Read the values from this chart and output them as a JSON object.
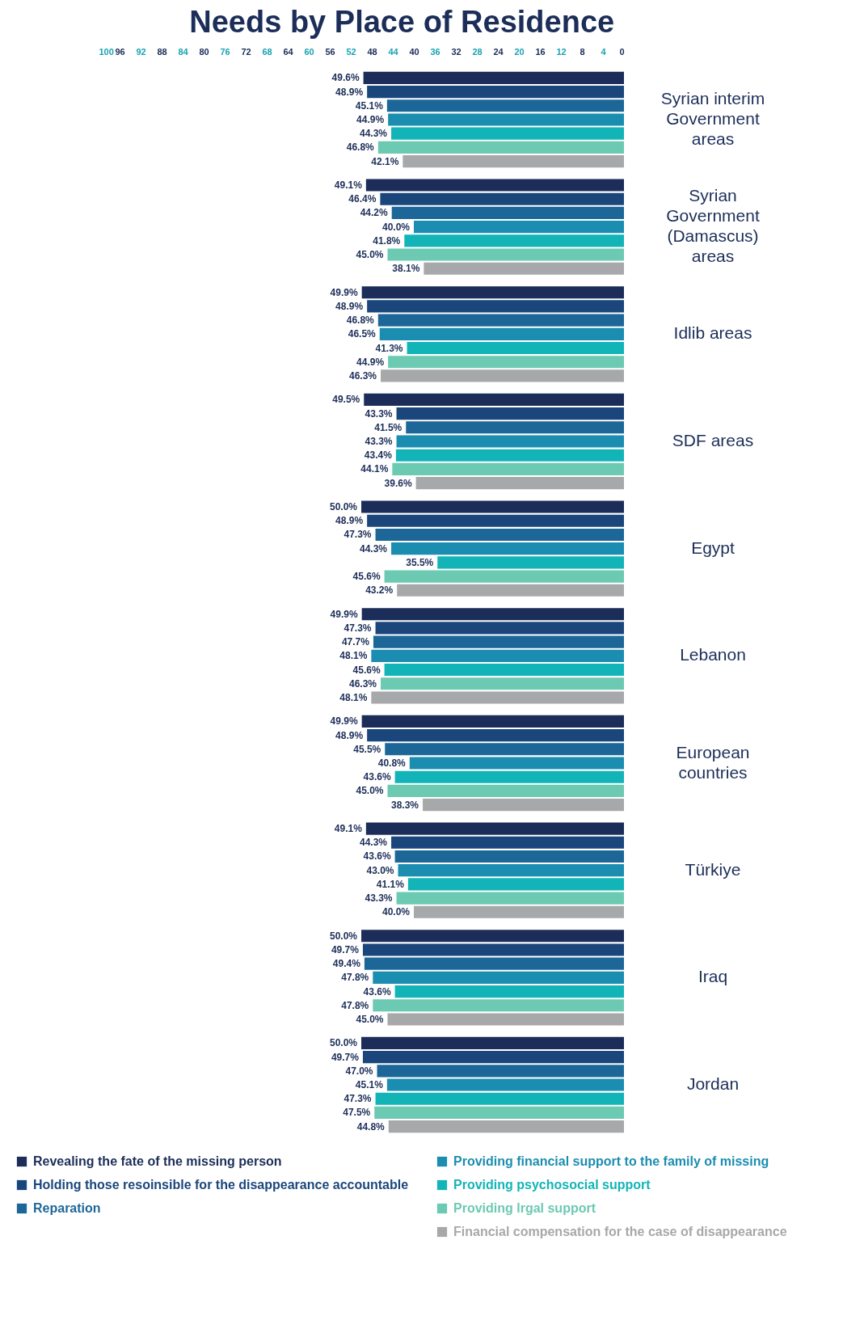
{
  "chart_data": {
    "type": "bar",
    "title": "Needs by Place of Residence",
    "orientation": "horizontal",
    "legend": "bottom",
    "grid": false,
    "categories": [
      "Syrian interim Government areas",
      "Syrian Government (Damascus) areas",
      "Idlib areas",
      "SDF areas",
      "Egypt",
      "Lebanon",
      "European countries",
      "Türkiye",
      "Iraq",
      "Jordan"
    ],
    "xlim": [
      100,
      0
    ],
    "xticks": [
      100,
      96,
      92,
      88,
      84,
      80,
      76,
      72,
      68,
      64,
      60,
      56,
      52,
      48,
      44,
      40,
      36,
      32,
      28,
      24,
      20,
      16,
      12,
      8,
      4,
      0
    ],
    "series": [
      {
        "name": "Revealing the fate of the missing person",
        "color": "#1b2d58",
        "values": [
          49.6,
          49.1,
          49.9,
          49.5,
          50.0,
          49.9,
          49.9,
          49.1,
          50.0,
          50.0
        ],
        "value_labels": [
          "49.6%",
          "49.1%",
          "49.9%",
          "49.5%",
          "50.0%",
          "49.9%",
          "49.9%",
          "49.1%",
          "50.0%",
          "50.0%"
        ]
      },
      {
        "name": "Holding those resoinsible for the disappearance accountable",
        "color": "#1a467c",
        "values": [
          48.9,
          46.4,
          48.9,
          43.3,
          48.9,
          47.3,
          48.9,
          44.3,
          49.7,
          49.7
        ],
        "value_labels": [
          "48.9%",
          "46.4%",
          "48.9%",
          "43.3%",
          "48.9%",
          "47.3%",
          "48.9%",
          "44.3%",
          "49.7%",
          "49.7%"
        ]
      },
      {
        "name": "Reparation",
        "color": "#1c6798",
        "values": [
          45.1,
          44.2,
          46.8,
          41.5,
          47.3,
          47.7,
          45.5,
          43.6,
          49.4,
          47.0
        ],
        "value_labels": [
          "45.1%",
          "44.2%",
          "46.8%",
          "41.5%",
          "47.3%",
          "47.7%",
          "45.5%",
          "43.6%",
          "49.4%",
          "47.0%"
        ]
      },
      {
        "name": "Providing financial support to the family of missing",
        "color": "#1b8db0",
        "values": [
          44.9,
          40.0,
          46.5,
          43.3,
          44.3,
          48.1,
          40.8,
          43.0,
          47.8,
          45.1
        ],
        "value_labels": [
          "44.9%",
          "40.0%",
          "46.5%",
          "43.3%",
          "44.3%",
          "48.1%",
          "40.8%",
          "43.0%",
          "47.8%",
          "45.1%"
        ]
      },
      {
        "name": "Providing psychosocial support",
        "color": "#13b4b7",
        "values": [
          44.3,
          41.8,
          41.3,
          43.4,
          35.5,
          45.6,
          43.6,
          41.1,
          43.6,
          47.3
        ],
        "value_labels": [
          "44.3%",
          "41.8%",
          "41.3%",
          "43.4%",
          "35.5%",
          "45.6%",
          "43.6%",
          "41.1%",
          "43.6%",
          "47.3%"
        ]
      },
      {
        "name": "Providing lrgal support",
        "color": "#6cc9b2",
        "values": [
          46.8,
          45.0,
          44.9,
          44.1,
          45.6,
          46.3,
          45.0,
          43.3,
          47.8,
          47.5
        ],
        "value_labels": [
          "46.8%",
          "45.0%",
          "44.9%",
          "44.1%",
          "45.6%",
          "46.3%",
          "45.0%",
          "43.3%",
          "47.8%",
          "47.5%"
        ]
      },
      {
        "name": "Financial compensation for the case of disappearance",
        "color": "#a7a8aa",
        "values": [
          42.1,
          38.1,
          46.3,
          39.6,
          43.2,
          48.1,
          38.3,
          40.0,
          45.0,
          44.8
        ],
        "value_labels": [
          "42.1%",
          "38.1%",
          "46.3%",
          "39.6%",
          "43.2%",
          "48.1%",
          "38.3%",
          "40.0%",
          "45.0%",
          "44.8%"
        ]
      }
    ]
  }
}
